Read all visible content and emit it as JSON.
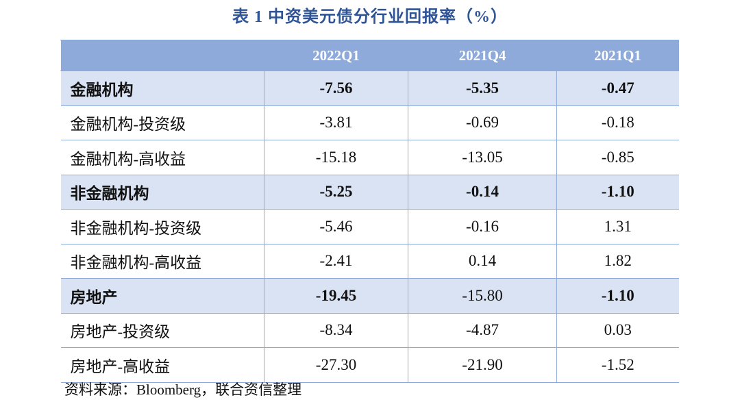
{
  "table": {
    "title": "表 1  中资美元债分行业回报率（%）",
    "columns": [
      "2022Q1",
      "2021Q4",
      "2021Q1"
    ],
    "rows": [
      {
        "label": "金融机构",
        "highlight": true,
        "cells": [
          "-7.56",
          "-5.35",
          "-0.47"
        ],
        "bold": [
          true,
          true,
          true
        ]
      },
      {
        "label": "金融机构-投资级",
        "highlight": false,
        "cells": [
          "-3.81",
          "-0.69",
          "-0.18"
        ],
        "bold": [
          false,
          false,
          false
        ]
      },
      {
        "label": "金融机构-高收益",
        "highlight": false,
        "cells": [
          "-15.18",
          "-13.05",
          "-0.85"
        ],
        "bold": [
          false,
          false,
          false
        ]
      },
      {
        "label": "非金融机构",
        "highlight": true,
        "cells": [
          "-5.25",
          "-0.14",
          "-1.10"
        ],
        "bold": [
          true,
          true,
          true
        ]
      },
      {
        "label": "非金融机构-投资级",
        "highlight": false,
        "cells": [
          "-5.46",
          "-0.16",
          "1.31"
        ],
        "bold": [
          false,
          false,
          false
        ]
      },
      {
        "label": "非金融机构-高收益",
        "highlight": false,
        "cells": [
          "-2.41",
          "0.14",
          "1.82"
        ],
        "bold": [
          false,
          false,
          false
        ]
      },
      {
        "label": "房地产",
        "highlight": true,
        "cells": [
          "-19.45",
          "-15.80",
          "-1.10"
        ],
        "bold": [
          true,
          false,
          true
        ]
      },
      {
        "label": "房地产-投资级",
        "highlight": false,
        "cells": [
          "-8.34",
          "-4.87",
          "0.03"
        ],
        "bold": [
          false,
          false,
          false
        ]
      },
      {
        "label": "房地产-高收益",
        "highlight": false,
        "cells": [
          "-27.30",
          "-21.90",
          "-1.52"
        ],
        "bold": [
          false,
          false,
          false
        ]
      }
    ],
    "source": "资料来源：Bloomberg，联合资信整理"
  }
}
